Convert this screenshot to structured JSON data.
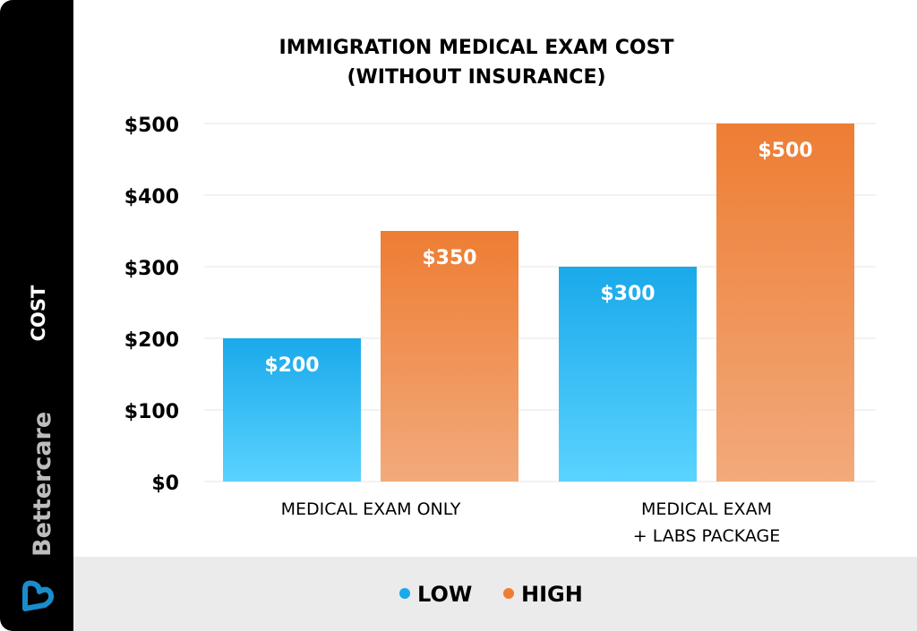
{
  "brand": {
    "name": "Bettercare",
    "color": "#1a8ccc"
  },
  "chart_data": {
    "type": "bar",
    "title": "IMMIGRATION MEDICAL EXAM COST\n(WITHOUT INSURANCE)",
    "title_lines": [
      "IMMIGRATION MEDICAL EXAM COST",
      "(WITHOUT INSURANCE)"
    ],
    "ylabel": "COST",
    "xlabel": "",
    "ylim": [
      0,
      500
    ],
    "yticks": [
      0,
      100,
      200,
      300,
      400,
      500
    ],
    "ytick_labels": [
      "$0",
      "$100",
      "$200",
      "$300",
      "$400",
      "$500"
    ],
    "grid": true,
    "legend_placement": "bottom",
    "categories": [
      [
        "MEDICAL EXAM ONLY"
      ],
      [
        "MEDICAL EXAM",
        "+ LABS PACKAGE"
      ]
    ],
    "series": [
      {
        "name": "LOW",
        "values": [
          200,
          300
        ],
        "labels": [
          "$200",
          "$300"
        ],
        "color": "#1aa9ea",
        "color_light": "#5ad3ff"
      },
      {
        "name": "HIGH",
        "values": [
          350,
          500
        ],
        "labels": [
          "$350",
          "$500"
        ],
        "color": "#ee7d33",
        "color_light": "#f2aa7c"
      }
    ]
  }
}
